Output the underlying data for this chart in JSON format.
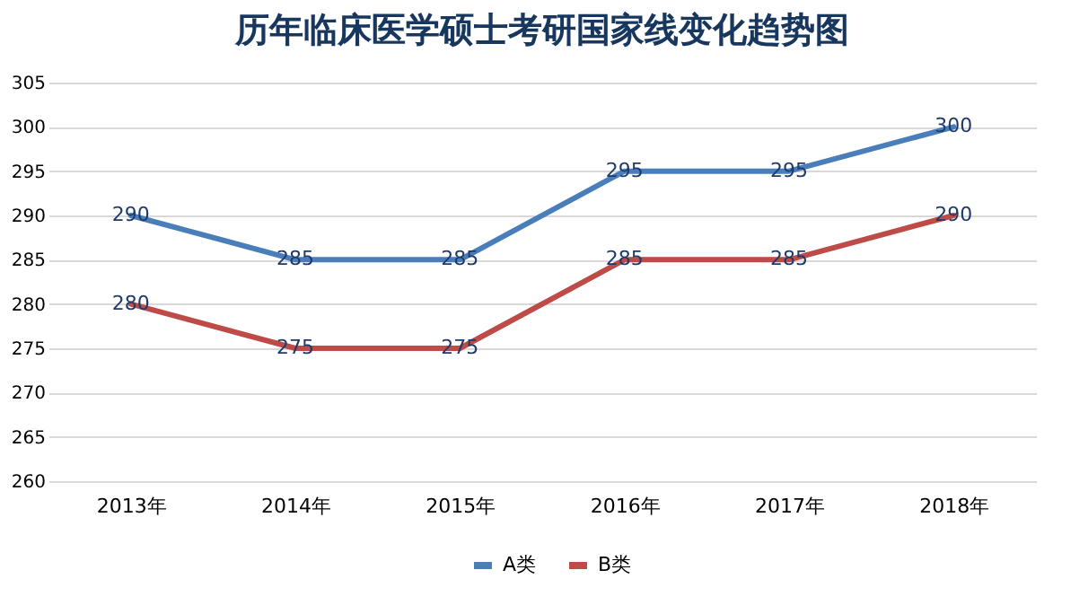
{
  "chart_data": {
    "type": "line",
    "title": "历年临床医学硕士考研国家线变化趋势图",
    "categories": [
      "2013年",
      "2014年",
      "2015年",
      "2016年",
      "2017年",
      "2018年"
    ],
    "series": [
      {
        "name": "A类",
        "color": "#4a7ebb",
        "values": [
          290,
          285,
          285,
          295,
          295,
          300
        ]
      },
      {
        "name": "B类",
        "color": "#be4b48",
        "values": [
          280,
          275,
          275,
          285,
          285,
          290
        ]
      }
    ],
    "ylim": [
      260,
      305
    ],
    "yticks": [
      260,
      265,
      270,
      275,
      280,
      285,
      290,
      295,
      300,
      305
    ],
    "grid": "y",
    "legend": "bottom",
    "data_labels": true,
    "marker": "none",
    "line_style": "solid"
  }
}
